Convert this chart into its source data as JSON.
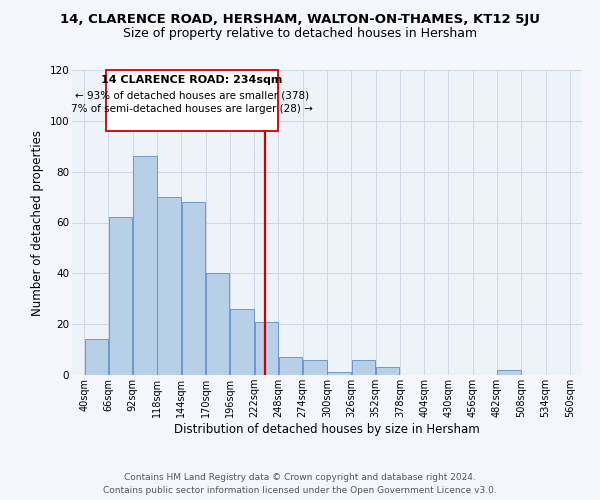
{
  "title_line1": "14, CLARENCE ROAD, HERSHAM, WALTON-ON-THAMES, KT12 5JU",
  "title_line2": "Size of property relative to detached houses in Hersham",
  "xlabel": "Distribution of detached houses by size in Hersham",
  "ylabel": "Number of detached properties",
  "bar_edges": [
    40,
    66,
    92,
    118,
    144,
    170,
    196,
    222,
    248,
    274,
    300,
    326,
    352,
    378,
    404,
    430,
    456,
    482,
    508,
    534,
    560
  ],
  "bar_heights": [
    14,
    62,
    86,
    70,
    68,
    40,
    26,
    21,
    7,
    6,
    1,
    6,
    3,
    0,
    0,
    0,
    0,
    2,
    0,
    0
  ],
  "bar_color": "#b8cfe8",
  "bar_edge_color": "#5b8fc9",
  "vline_x": 234,
  "vline_color": "#cc0000",
  "annotation_title": "14 CLARENCE ROAD: 234sqm",
  "annotation_line2": "← 93% of detached houses are smaller (378)",
  "annotation_line3": "7% of semi-detached houses are larger (28) →",
  "annotation_box_color": "#cc0000",
  "annotation_fill": "#ffffff",
  "ylim": [
    0,
    120
  ],
  "yticks": [
    0,
    20,
    40,
    60,
    80,
    100,
    120
  ],
  "tick_labels": [
    "40sqm",
    "66sqm",
    "92sqm",
    "118sqm",
    "144sqm",
    "170sqm",
    "196sqm",
    "222sqm",
    "248sqm",
    "274sqm",
    "300sqm",
    "326sqm",
    "352sqm",
    "378sqm",
    "404sqm",
    "430sqm",
    "456sqm",
    "482sqm",
    "508sqm",
    "534sqm",
    "560sqm"
  ],
  "footer_line1": "Contains HM Land Registry data © Crown copyright and database right 2024.",
  "footer_line2": "Contains public sector information licensed under the Open Government Licence v3.0.",
  "bg_color": "#eef2f9",
  "grid_color": "#cdd5e5",
  "title_fontsize": 9.5,
  "subtitle_fontsize": 9,
  "axis_label_fontsize": 8.5,
  "tick_fontsize": 7,
  "footer_fontsize": 6.5,
  "annotation_fontsize_title": 8,
  "annotation_fontsize_body": 7.5
}
